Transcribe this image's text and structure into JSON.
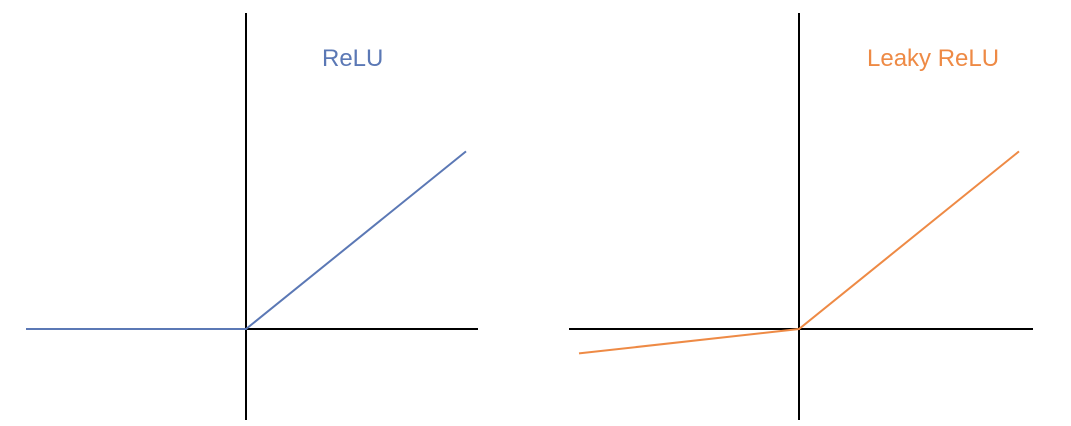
{
  "colors": {
    "relu": "#5b78b5",
    "leaky_relu": "#ee8a45",
    "axis": "#000000",
    "background": "#ffffff"
  },
  "chart_data": [
    {
      "type": "line",
      "title": "ReLU",
      "xlabel": "",
      "ylabel": "",
      "xlim": [
        -1,
        1
      ],
      "ylim": [
        -0.5,
        1.0
      ],
      "grid": false,
      "series": [
        {
          "color": "#5b78b5",
          "x": [
            -1,
            0,
            1
          ],
          "y": [
            0,
            0,
            0.8
          ]
        }
      ]
    },
    {
      "type": "line",
      "title": "Leaky ReLU",
      "xlabel": "",
      "ylabel": "",
      "xlim": [
        -1,
        1
      ],
      "ylim": [
        -0.5,
        1.0
      ],
      "grid": false,
      "series": [
        {
          "color": "#ee8a45",
          "x": [
            -1,
            0,
            1
          ],
          "y": [
            -0.11,
            0,
            0.8
          ]
        }
      ]
    }
  ]
}
